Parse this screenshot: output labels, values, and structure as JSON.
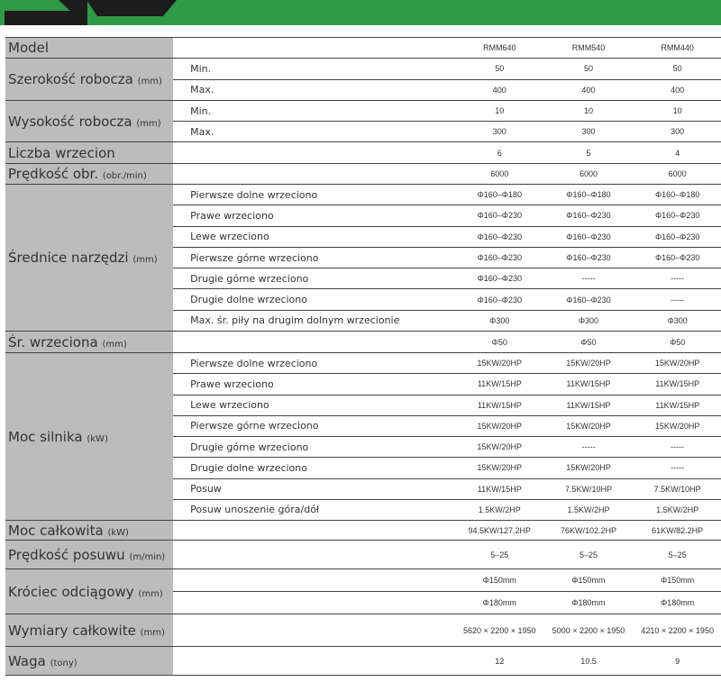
{
  "colors": {
    "banner": "#2f9a48",
    "label_bg": "#bcbcbc"
  },
  "header": {
    "label": "Model",
    "models": [
      "RMM640",
      "RMM540",
      "RMM440"
    ]
  },
  "groups": [
    {
      "label": "Szerokość robocza",
      "unit": "(mm)",
      "rows": [
        {
          "sub": "Min.",
          "values": [
            "50",
            "50",
            "50"
          ]
        },
        {
          "sub": "Max.",
          "values": [
            "400",
            "400",
            "400"
          ]
        }
      ]
    },
    {
      "label": "Wysokość robocza",
      "unit": "(mm)",
      "rows": [
        {
          "sub": "Min.",
          "values": [
            "10",
            "10",
            "10"
          ]
        },
        {
          "sub": "Max.",
          "values": [
            "300",
            "300",
            "300"
          ]
        }
      ]
    },
    {
      "label": "Liczba wrzecion",
      "unit": "",
      "rows": [
        {
          "sub": "",
          "values": [
            "6",
            "5",
            "4"
          ]
        }
      ]
    },
    {
      "label": "Prędkość obr.",
      "unit": "(obr./min)",
      "rows": [
        {
          "sub": "",
          "values": [
            "6000",
            "6000",
            "6000"
          ]
        }
      ]
    },
    {
      "label": "Średnice narzędzi",
      "unit": "(mm)",
      "rows": [
        {
          "sub": "Pierwsze dolne wrzeciono",
          "values": [
            "Φ160–Φ180",
            "Φ160–Φ180",
            "Φ160–Φ180"
          ]
        },
        {
          "sub": "Prawe wrzeciono",
          "values": [
            "Φ160–Φ230",
            "Φ160–Φ230",
            "Φ160–Φ230"
          ]
        },
        {
          "sub": "Lewe wrzeciono",
          "values": [
            "Φ160–Φ230",
            "Φ160–Φ230",
            "Φ160–Φ230"
          ]
        },
        {
          "sub": "Pierwsze górne wrzeciono",
          "values": [
            "Φ160–Φ230",
            "Φ160–Φ230",
            "Φ160–Φ230"
          ]
        },
        {
          "sub": "Drugie górne wrzeciono",
          "values": [
            "Φ160–Φ230",
            "-----",
            "-----"
          ]
        },
        {
          "sub": "Drugie dolne wrzeciono",
          "values": [
            "Φ160–Φ230",
            "Φ160–Φ230",
            "-----"
          ]
        },
        {
          "sub": "Max. śr. piły na drugim dolnym wrzecionie",
          "values": [
            "Φ300",
            "Φ300",
            "Φ300"
          ]
        }
      ]
    },
    {
      "label": "Śr. wrzeciona",
      "unit": "(mm)",
      "rows": [
        {
          "sub": "",
          "values": [
            "Φ50",
            "Φ50",
            "Φ50"
          ]
        }
      ]
    },
    {
      "label": "Moc silnika",
      "unit": "(kW)",
      "rows": [
        {
          "sub": "Pierwsze dolne wrzeciono",
          "values": [
            "15KW/20HP",
            "15KW/20HP",
            "15KW/20HP"
          ]
        },
        {
          "sub": "Prawe wrzeciono",
          "values": [
            "11KW/15HP",
            "11KW/15HP",
            "11KW/15HP"
          ]
        },
        {
          "sub": "Lewe wrzeciono",
          "values": [
            "11KW/15HP",
            "11KW/15HP",
            "11KW/15HP"
          ]
        },
        {
          "sub": "Pierwsze górne wrzeciono",
          "values": [
            "15KW/20HP",
            "15KW/20HP",
            "15KW/20HP"
          ]
        },
        {
          "sub": "Drugie górne wrzeciono",
          "values": [
            "15KW/20HP",
            "-----",
            "-----"
          ]
        },
        {
          "sub": "Drugie dolne wrzeciono",
          "values": [
            "15KW/20HP",
            "15KW/20HP",
            "-----"
          ]
        },
        {
          "sub": "Posuw",
          "values": [
            "11KW/15HP",
            "7.5KW/10HP",
            "7.5KW/10HP"
          ]
        },
        {
          "sub": "Posuw unoszenie góra/dół",
          "values": [
            "1.5KW/2HP",
            "1.5KW/2HP",
            "1.5KW/2HP"
          ]
        }
      ]
    },
    {
      "label": "Moc całkowita",
      "unit": "(kW)",
      "rows": [
        {
          "sub": "",
          "values": [
            "94.5KW/127.2HP",
            "76KW/102.2HP",
            "61KW/82.2HP"
          ]
        }
      ]
    },
    {
      "label": "Prędkość posuwu",
      "unit": "(m/min)",
      "rows": [
        {
          "sub": "",
          "values": [
            "5–25",
            "5–25",
            "5–25"
          ]
        }
      ]
    },
    {
      "label": "Króciec odciągowy",
      "unit": "(mm)",
      "rows": [
        {
          "sub": "",
          "values": [
            "Φ150mm",
            "Φ150mm",
            "Φ150mm"
          ]
        },
        {
          "sub": "",
          "values": [
            "Φ180mm",
            "Φ180mm",
            "Φ180mm"
          ]
        }
      ]
    },
    {
      "label": "Wymiary całkowite",
      "unit": "(mm)",
      "rows": [
        {
          "sub": "",
          "values": [
            "5620 × 2200 × 1950",
            "5000 × 2200 × 1950",
            "4210 × 2200 × 1950"
          ]
        }
      ]
    },
    {
      "label": "Waga",
      "unit": "(tony)",
      "rows": [
        {
          "sub": "",
          "values": [
            "12",
            "10.5",
            "9"
          ]
        }
      ]
    }
  ]
}
